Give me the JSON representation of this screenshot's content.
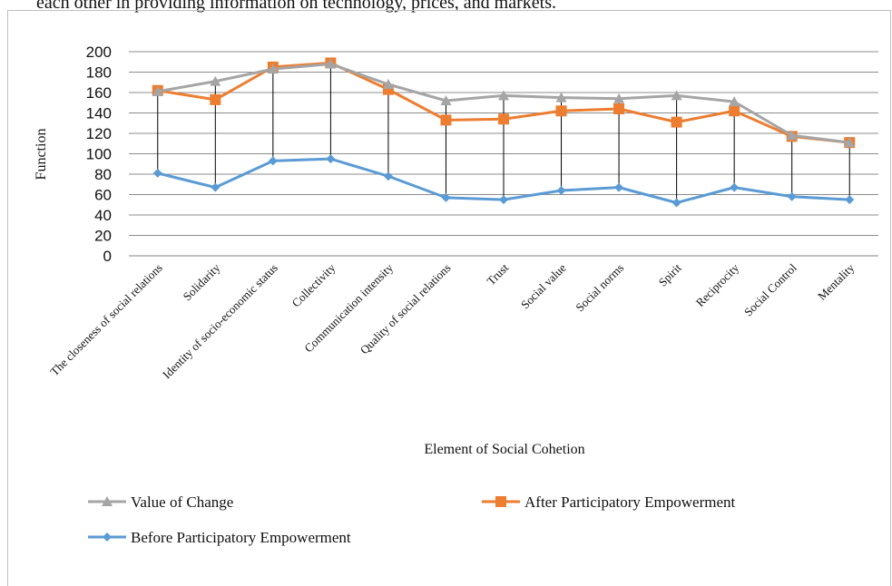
{
  "page": {
    "top_text": "each other in providing information on technology, prices, and markets."
  },
  "chart_data": {
    "type": "line",
    "title": "",
    "xlabel": "Element of Social Cohetion",
    "ylabel": "Function",
    "ylim": [
      0,
      200
    ],
    "yticks": [
      0,
      20,
      40,
      60,
      80,
      100,
      120,
      140,
      160,
      180,
      200
    ],
    "grid": true,
    "legend_position": "bottom",
    "categories": [
      "The closeness of social relations",
      "Solidarity",
      "Identity of socio-economic status",
      "Collectivity",
      "Communication intensity",
      "Quality of social relations",
      "Trust",
      "Social value",
      "Social norms",
      "Spirit",
      "Reciprocity",
      "Social Control",
      "Mentality"
    ],
    "series": [
      {
        "name": "Value of Change",
        "color": "#a5a5a5",
        "marker": "triangle",
        "values": [
          161,
          171,
          183,
          188,
          168,
          152,
          157,
          155,
          154,
          157,
          151,
          118,
          111
        ]
      },
      {
        "name": "After Participatory Empowerment",
        "color": "#ed7d31",
        "marker": "square",
        "values": [
          162,
          153,
          185,
          189,
          163,
          133,
          134,
          142,
          144,
          131,
          142,
          117,
          111
        ]
      },
      {
        "name": "Before Participatory Empowerment",
        "color": "#5b9bd5",
        "marker": "diamond",
        "values": [
          81,
          67,
          93,
          95,
          78,
          57,
          55,
          64,
          67,
          52,
          67,
          58,
          55
        ]
      }
    ],
    "drop_lines": true
  }
}
